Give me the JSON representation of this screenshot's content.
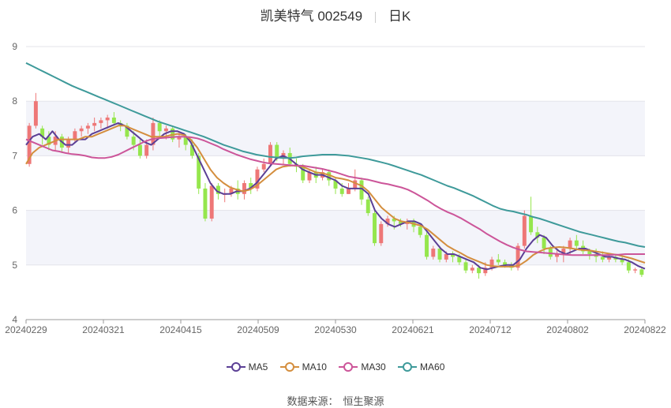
{
  "title": {
    "name": "凯美特气 002549",
    "period": "日K"
  },
  "source": {
    "label": "数据来源：",
    "value": "恒生聚源"
  },
  "colors": {
    "up": "#ee7777",
    "down": "#95e64d",
    "MA5": "#5b3f95",
    "MA10": "#d48e3e",
    "MA30": "#cc5599",
    "MA60": "#3e9a9a"
  },
  "chart_data": {
    "type": "candlestick",
    "ylim": [
      4,
      9
    ],
    "yticks": [
      "4",
      "5",
      "6",
      "7",
      "8",
      "9"
    ],
    "xticks": [
      "20240229",
      "20240321",
      "20240415",
      "20240509",
      "20240530",
      "20240621",
      "20240712",
      "20240802",
      "20240822"
    ],
    "grid": true,
    "legend_position": "bottom",
    "legend": [
      "MA5",
      "MA10",
      "MA30",
      "MA60"
    ],
    "candles": [
      [
        6.85,
        7.55,
        6.8,
        7.6
      ],
      [
        7.55,
        8.0,
        7.5,
        8.15
      ],
      [
        7.5,
        7.35,
        7.2,
        7.55
      ],
      [
        7.35,
        7.2,
        7.1,
        7.45
      ],
      [
        7.2,
        7.35,
        7.1,
        7.45
      ],
      [
        7.35,
        7.15,
        7.05,
        7.4
      ],
      [
        7.15,
        7.3,
        7.05,
        7.35
      ],
      [
        7.3,
        7.45,
        7.25,
        7.5
      ],
      [
        7.45,
        7.5,
        7.35,
        7.55
      ],
      [
        7.5,
        7.55,
        7.4,
        7.6
      ],
      [
        7.55,
        7.6,
        7.45,
        7.7
      ],
      [
        7.6,
        7.65,
        7.5,
        7.7
      ],
      [
        7.65,
        7.7,
        7.5,
        7.75
      ],
      [
        7.7,
        7.6,
        7.55,
        7.8
      ],
      [
        7.6,
        7.55,
        7.45,
        7.65
      ],
      [
        7.55,
        7.35,
        7.3,
        7.6
      ],
      [
        7.35,
        7.2,
        7.1,
        7.45
      ],
      [
        7.2,
        7.0,
        6.95,
        7.3
      ],
      [
        7.0,
        7.2,
        6.95,
        7.3
      ],
      [
        7.2,
        7.6,
        7.1,
        7.7
      ],
      [
        7.6,
        7.45,
        7.35,
        7.65
      ],
      [
        7.45,
        7.5,
        7.3,
        7.55
      ],
      [
        7.5,
        7.3,
        7.25,
        7.55
      ],
      [
        7.3,
        7.35,
        7.15,
        7.45
      ],
      [
        7.35,
        7.2,
        7.1,
        7.4
      ],
      [
        7.2,
        7.0,
        6.95,
        7.3
      ],
      [
        7.0,
        6.4,
        6.3,
        7.05
      ],
      [
        6.4,
        5.85,
        5.8,
        6.5
      ],
      [
        5.85,
        6.45,
        5.8,
        6.5
      ],
      [
        6.45,
        6.3,
        6.2,
        6.5
      ],
      [
        6.3,
        6.3,
        6.15,
        6.4
      ],
      [
        6.3,
        6.4,
        6.25,
        6.45
      ],
      [
        6.4,
        6.3,
        6.2,
        6.55
      ],
      [
        6.3,
        6.5,
        6.2,
        6.55
      ],
      [
        6.5,
        6.4,
        6.3,
        6.6
      ],
      [
        6.4,
        6.75,
        6.35,
        6.8
      ],
      [
        6.75,
        6.85,
        6.7,
        6.95
      ],
      [
        6.85,
        7.2,
        6.8,
        7.25
      ],
      [
        7.2,
        6.95,
        6.9,
        7.25
      ],
      [
        6.95,
        7.05,
        6.85,
        7.1
      ],
      [
        7.05,
        6.85,
        6.8,
        7.15
      ],
      [
        6.85,
        6.8,
        6.7,
        6.95
      ],
      [
        6.8,
        6.55,
        6.5,
        6.85
      ],
      [
        6.55,
        6.7,
        6.5,
        6.75
      ],
      [
        6.7,
        6.6,
        6.5,
        6.8
      ],
      [
        6.6,
        6.7,
        6.55,
        6.75
      ],
      [
        6.7,
        6.55,
        6.45,
        6.75
      ],
      [
        6.55,
        6.4,
        6.3,
        6.6
      ],
      [
        6.4,
        6.3,
        6.25,
        6.5
      ],
      [
        6.3,
        6.4,
        6.3,
        6.5
      ],
      [
        6.4,
        6.55,
        6.35,
        6.75
      ],
      [
        6.55,
        6.2,
        6.1,
        6.6
      ],
      [
        6.2,
        5.95,
        5.9,
        6.25
      ],
      [
        5.95,
        5.4,
        5.35,
        6.0
      ],
      [
        5.4,
        5.75,
        5.35,
        5.8
      ],
      [
        5.75,
        5.85,
        5.7,
        5.9
      ],
      [
        5.85,
        5.8,
        5.65,
        5.9
      ],
      [
        5.8,
        5.75,
        5.7,
        5.85
      ],
      [
        5.75,
        5.8,
        5.65,
        5.85
      ],
      [
        5.8,
        5.7,
        5.6,
        5.85
      ],
      [
        5.7,
        5.55,
        5.5,
        5.75
      ],
      [
        5.55,
        5.15,
        5.1,
        5.6
      ],
      [
        5.15,
        5.3,
        5.1,
        5.35
      ],
      [
        5.3,
        5.1,
        5.05,
        5.35
      ],
      [
        5.1,
        5.2,
        5.05,
        5.25
      ],
      [
        5.2,
        5.15,
        5.05,
        5.25
      ],
      [
        5.15,
        5.05,
        5.0,
        5.2
      ],
      [
        5.05,
        4.9,
        4.85,
        5.1
      ],
      [
        4.9,
        4.95,
        4.85,
        5.0
      ],
      [
        4.95,
        4.85,
        4.75,
        5.0
      ],
      [
        4.85,
        4.95,
        4.8,
        5.05
      ],
      [
        4.95,
        5.1,
        4.9,
        5.15
      ],
      [
        5.1,
        5.05,
        5.0,
        5.2
      ],
      [
        5.05,
        5.0,
        4.95,
        5.1
      ],
      [
        5.0,
        4.95,
        4.9,
        5.05
      ],
      [
        4.95,
        5.35,
        4.9,
        5.4
      ],
      [
        5.35,
        5.9,
        5.3,
        6.0
      ],
      [
        5.9,
        5.6,
        5.55,
        6.25
      ],
      [
        5.6,
        5.5,
        5.4,
        5.7
      ],
      [
        5.5,
        5.3,
        5.2,
        5.55
      ],
      [
        5.3,
        5.15,
        5.1,
        5.35
      ],
      [
        5.15,
        5.2,
        5.05,
        5.3
      ],
      [
        5.2,
        5.3,
        5.05,
        5.35
      ],
      [
        5.3,
        5.45,
        5.2,
        5.5
      ],
      [
        5.45,
        5.35,
        5.3,
        5.55
      ],
      [
        5.35,
        5.25,
        5.2,
        5.45
      ],
      [
        5.25,
        5.2,
        5.1,
        5.3
      ],
      [
        5.2,
        5.15,
        5.05,
        5.3
      ],
      [
        5.15,
        5.1,
        5.05,
        5.25
      ],
      [
        5.1,
        5.15,
        5.05,
        5.2
      ],
      [
        5.15,
        5.1,
        5.05,
        5.2
      ],
      [
        5.1,
        5.05,
        5.0,
        5.15
      ],
      [
        5.05,
        4.9,
        4.85,
        5.1
      ],
      [
        4.9,
        4.92,
        4.85,
        4.95
      ],
      [
        4.92,
        4.82,
        4.78,
        4.95
      ]
    ],
    "series": [
      {
        "name": "MA5",
        "values": [
          7.2,
          7.35,
          7.4,
          7.3,
          7.45,
          7.3,
          7.2,
          7.2,
          7.3,
          7.3,
          7.4,
          7.45,
          7.5,
          7.55,
          7.6,
          7.55,
          7.45,
          7.35,
          7.25,
          7.2,
          7.3,
          7.4,
          7.45,
          7.45,
          7.4,
          7.25,
          7.0,
          6.75,
          6.5,
          6.35,
          6.3,
          6.3,
          6.35,
          6.35,
          6.4,
          6.5,
          6.65,
          6.8,
          6.95,
          7.0,
          6.95,
          6.85,
          6.75,
          6.7,
          6.65,
          6.65,
          6.6,
          6.55,
          6.45,
          6.4,
          6.4,
          6.4,
          6.3,
          6.0,
          5.85,
          5.75,
          5.7,
          5.75,
          5.8,
          5.8,
          5.75,
          5.6,
          5.45,
          5.3,
          5.2,
          5.2,
          5.15,
          5.1,
          5.05,
          4.95,
          4.92,
          4.95,
          4.98,
          5.0,
          5.0,
          5.1,
          5.3,
          5.45,
          5.55,
          5.5,
          5.35,
          5.25,
          5.2,
          5.25,
          5.3,
          5.3,
          5.25,
          5.2,
          5.15,
          5.15,
          5.12,
          5.1,
          5.05,
          4.98,
          4.93
        ]
      },
      {
        "name": "MA10",
        "values": [
          6.85,
          7.05,
          7.15,
          7.2,
          7.25,
          7.3,
          7.3,
          7.3,
          7.3,
          7.35,
          7.35,
          7.4,
          7.45,
          7.5,
          7.55,
          7.55,
          7.5,
          7.45,
          7.4,
          7.35,
          7.35,
          7.35,
          7.38,
          7.4,
          7.38,
          7.3,
          7.15,
          6.95,
          6.75,
          6.6,
          6.5,
          6.42,
          6.38,
          6.35,
          6.38,
          6.45,
          6.55,
          6.65,
          6.75,
          6.8,
          6.82,
          6.82,
          6.8,
          6.75,
          6.7,
          6.68,
          6.65,
          6.6,
          6.58,
          6.55,
          6.5,
          6.45,
          6.35,
          6.2,
          6.05,
          5.95,
          5.85,
          5.8,
          5.78,
          5.75,
          5.72,
          5.65,
          5.55,
          5.45,
          5.35,
          5.28,
          5.22,
          5.15,
          5.1,
          5.05,
          5.0,
          4.98,
          4.97,
          4.97,
          4.97,
          5.0,
          5.08,
          5.18,
          5.25,
          5.3,
          5.32,
          5.33,
          5.32,
          5.3,
          5.28,
          5.27,
          5.26,
          5.24,
          5.22,
          5.2,
          5.18,
          5.15,
          5.12,
          5.08,
          5.04
        ]
      },
      {
        "name": "MA30",
        "values": [
          7.3,
          7.25,
          7.2,
          7.15,
          7.1,
          7.08,
          7.05,
          7.03,
          7.02,
          7.0,
          6.97,
          6.96,
          6.96,
          6.98,
          7.02,
          7.08,
          7.14,
          7.2,
          7.26,
          7.3,
          7.32,
          7.33,
          7.34,
          7.35,
          7.35,
          7.34,
          7.32,
          7.28,
          7.23,
          7.18,
          7.12,
          7.07,
          7.02,
          6.98,
          6.94,
          6.91,
          6.88,
          6.86,
          6.85,
          6.84,
          6.83,
          6.82,
          6.82,
          6.8,
          6.78,
          6.76,
          6.73,
          6.7,
          6.66,
          6.62,
          6.6,
          6.58,
          6.56,
          6.53,
          6.5,
          6.48,
          6.45,
          6.42,
          6.38,
          6.32,
          6.25,
          6.18,
          6.1,
          6.03,
          5.97,
          5.92,
          5.86,
          5.79,
          5.72,
          5.65,
          5.57,
          5.5,
          5.43,
          5.37,
          5.32,
          5.28,
          5.25,
          5.24,
          5.23,
          5.22,
          5.21,
          5.2,
          5.19,
          5.18,
          5.18,
          5.18,
          5.18,
          5.18,
          5.18,
          5.19,
          5.19,
          5.2,
          5.2,
          5.2,
          5.2
        ]
      },
      {
        "name": "MA60",
        "values": [
          8.7,
          8.64,
          8.58,
          8.52,
          8.46,
          8.4,
          8.34,
          8.28,
          8.23,
          8.18,
          8.13,
          8.08,
          8.03,
          7.98,
          7.93,
          7.88,
          7.83,
          7.78,
          7.73,
          7.68,
          7.63,
          7.59,
          7.55,
          7.51,
          7.47,
          7.43,
          7.39,
          7.35,
          7.3,
          7.25,
          7.2,
          7.16,
          7.12,
          7.08,
          7.05,
          7.02,
          7.0,
          6.98,
          6.97,
          6.96,
          6.96,
          6.97,
          6.99,
          7.0,
          7.01,
          7.02,
          7.02,
          7.02,
          7.01,
          7.0,
          6.98,
          6.96,
          6.94,
          6.91,
          6.88,
          6.85,
          6.81,
          6.77,
          6.73,
          6.69,
          6.65,
          6.6,
          6.55,
          6.5,
          6.45,
          6.41,
          6.36,
          6.31,
          6.26,
          6.2,
          6.14,
          6.08,
          6.03,
          6.0,
          5.98,
          5.95,
          5.92,
          5.88,
          5.85,
          5.81,
          5.77,
          5.73,
          5.69,
          5.65,
          5.61,
          5.58,
          5.55,
          5.52,
          5.49,
          5.46,
          5.43,
          5.41,
          5.38,
          5.35,
          5.33
        ]
      }
    ]
  }
}
